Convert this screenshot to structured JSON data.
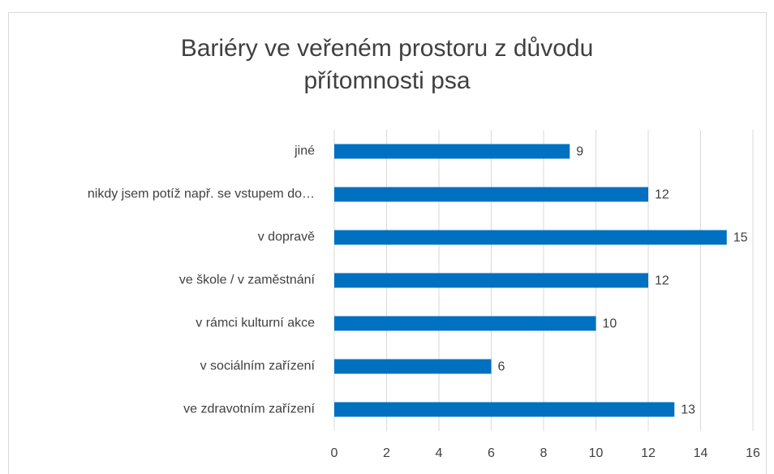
{
  "chart_data": {
    "type": "bar",
    "orientation": "horizontal",
    "title": "Bariéry ve veřeném prostoru z důvodu přítomnosti psa",
    "categories": [
      "jiné",
      "nikdy jsem potíž např. se vstupem do…",
      "v dopravě",
      "ve škole / v zaměstnání",
      "v rámci kulturní akce",
      "v sociálním zařízení",
      "ve zdravotním zařízení"
    ],
    "values": [
      9,
      12,
      15,
      12,
      10,
      6,
      13
    ],
    "color": "#0070c0",
    "xlim": [
      0,
      16
    ],
    "xticks": [
      0,
      2,
      4,
      6,
      8,
      10,
      12,
      14,
      16
    ],
    "grid": true
  }
}
